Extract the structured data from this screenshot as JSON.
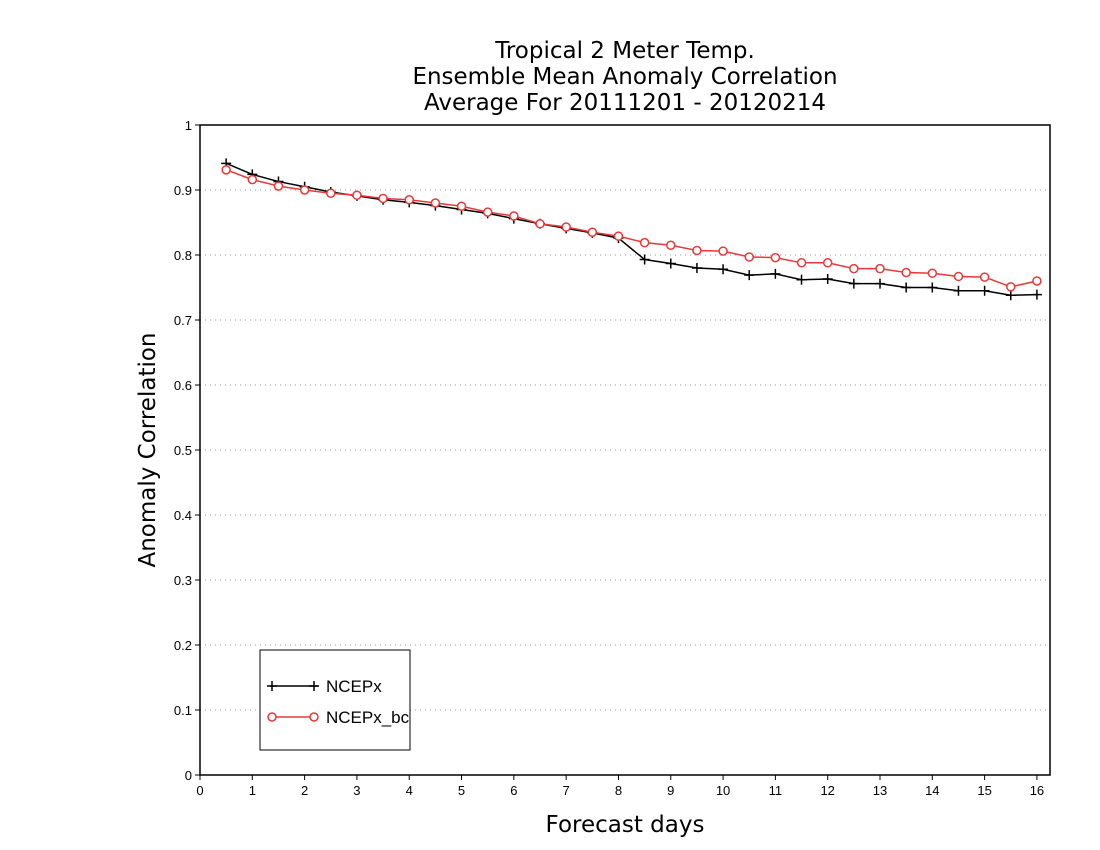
{
  "chart_data": {
    "type": "line",
    "title_lines": [
      "Tropical 2 Meter Temp.",
      "Ensemble Mean Anomaly Correlation",
      "Average For 20111201 - 20120214"
    ],
    "xlabel": "Forecast days",
    "ylabel": "Anomaly Correlation",
    "xlim": [
      0,
      16.25
    ],
    "ylim": [
      0,
      1
    ],
    "x_ticks": [
      0,
      1,
      2,
      3,
      4,
      5,
      6,
      7,
      8,
      9,
      10,
      11,
      12,
      13,
      14,
      15,
      16
    ],
    "x_tick_labels": [
      "0",
      "1",
      "2",
      "3",
      "4",
      "5",
      "6",
      "7",
      "8",
      "9",
      "10",
      "11",
      "12",
      "13",
      "14",
      "15",
      "16"
    ],
    "y_ticks": [
      0,
      0.1,
      0.2,
      0.3,
      0.4,
      0.5,
      0.6,
      0.7,
      0.8,
      0.9,
      1
    ],
    "y_tick_labels": [
      "0",
      "0.1",
      "0.2",
      "0.3",
      "0.4",
      "0.5",
      "0.6",
      "0.7",
      "0.8",
      "0.9",
      "1"
    ],
    "grid": "horizontal dotted",
    "legend_position": "bottom-left",
    "x": [
      0.5,
      1,
      1.5,
      2,
      2.5,
      3,
      3.5,
      4,
      4.5,
      5,
      5.5,
      6,
      6.5,
      7,
      7.5,
      8,
      8.5,
      9,
      9.5,
      10,
      10.5,
      11,
      11.5,
      12,
      12.5,
      13,
      13.5,
      14,
      14.5,
      15,
      15.5,
      16
    ],
    "series": [
      {
        "name": "NCEPx",
        "color": "#000000",
        "marker": "plus",
        "values": [
          0.941,
          0.924,
          0.913,
          0.905,
          0.897,
          0.891,
          0.885,
          0.881,
          0.876,
          0.87,
          0.864,
          0.856,
          0.848,
          0.841,
          0.834,
          0.826,
          0.793,
          0.787,
          0.78,
          0.778,
          0.769,
          0.771,
          0.762,
          0.763,
          0.756,
          0.756,
          0.75,
          0.75,
          0.745,
          0.745,
          0.738,
          0.739
        ]
      },
      {
        "name": "NCEPx_bc",
        "color": "#e83838",
        "marker": "circle",
        "values": [
          0.931,
          0.916,
          0.906,
          0.9,
          0.895,
          0.892,
          0.887,
          0.885,
          0.88,
          0.875,
          0.866,
          0.86,
          0.848,
          0.843,
          0.835,
          0.829,
          0.819,
          0.815,
          0.807,
          0.806,
          0.797,
          0.796,
          0.788,
          0.788,
          0.779,
          0.779,
          0.773,
          0.772,
          0.767,
          0.766,
          0.751,
          0.76
        ]
      }
    ]
  }
}
